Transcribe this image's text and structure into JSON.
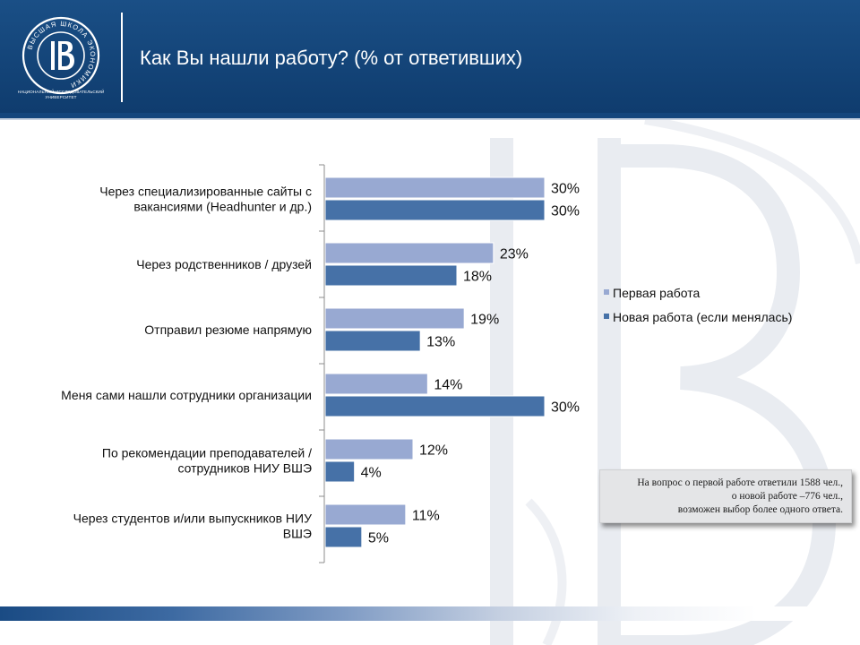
{
  "header": {
    "title": "Как Вы нашли работу? (% от ответивших)",
    "logo": {
      "icon": "hse-logo-icon",
      "ring_text": "ВЫСШАЯ ШКОЛА ЭКОНОМИКИ",
      "caption_line1": "НАЦИОНАЛЬНЫЙ ИССЛЕДОВАТЕЛЬСКИЙ",
      "caption_line2": "УНИВЕРСИТЕТ"
    },
    "background_color": "#11406f"
  },
  "chart_data": {
    "type": "bar",
    "orientation": "horizontal",
    "title": "",
    "xlabel": "",
    "ylabel": "",
    "categories": [
      [
        "Через специализированные сайты с",
        "вакансиями (Headhunter и др.)"
      ],
      [
        "Через родственников / друзей"
      ],
      [
        "Отправил резюме напрямую"
      ],
      [
        "Меня сами нашли сотрудники организации"
      ],
      [
        "По рекомендации преподавателей /",
        "сотрудников НИУ ВШЭ"
      ],
      [
        "Через студентов и/или выпускников НИУ",
        "ВШЭ"
      ]
    ],
    "series": [
      {
        "name": "Первая работа",
        "color": "#98a9d2",
        "values": [
          30,
          23,
          19,
          14,
          12,
          11
        ],
        "labels": [
          "30%",
          "23%",
          "19%",
          "14%",
          "12%",
          "11%"
        ]
      },
      {
        "name": "Новая работа (если менялась)",
        "color": "#4671a7",
        "values": [
          30,
          18,
          13,
          30,
          4,
          5
        ],
        "labels": [
          "30%",
          "18%",
          "13%",
          "30%",
          "4%",
          "5%"
        ]
      }
    ],
    "xlim": [
      0,
      30
    ],
    "grid": false,
    "legend_position": "right"
  },
  "note": {
    "lines": [
      "На вопрос о первой работе ответили 1588 чел.,",
      "о новой работе –776 чел.,",
      "возможен выбор более одного ответа."
    ]
  }
}
